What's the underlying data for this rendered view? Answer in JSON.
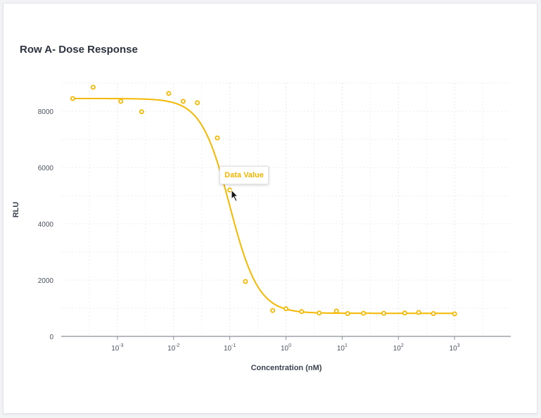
{
  "chart_data": {
    "type": "scatter",
    "title": "Row A- Dose Response",
    "xlabel": "Concentration (nM)",
    "ylabel": "RLU",
    "xscale": "log",
    "xlim": [
      0.0001,
      10000
    ],
    "ylim": [
      0,
      9000
    ],
    "yticks": [
      0,
      2000,
      4000,
      6000,
      8000
    ],
    "xticks": [
      {
        "base": "10",
        "exp": "-3",
        "value": 0.001
      },
      {
        "base": "10",
        "exp": "-2",
        "value": 0.01
      },
      {
        "base": "10",
        "exp": "-1",
        "value": 0.1
      },
      {
        "base": "10",
        "exp": "0",
        "value": 1
      },
      {
        "base": "10",
        "exp": "1",
        "value": 10
      },
      {
        "base": "10",
        "exp": "2",
        "value": 100
      },
      {
        "base": "10",
        "exp": "3",
        "value": 1000
      }
    ],
    "points": [
      {
        "x": 0.00016,
        "y": 8450
      },
      {
        "x": 0.00037,
        "y": 8850
      },
      {
        "x": 0.00115,
        "y": 8350
      },
      {
        "x": 0.0027,
        "y": 7980
      },
      {
        "x": 0.0082,
        "y": 8630
      },
      {
        "x": 0.0148,
        "y": 8350
      },
      {
        "x": 0.0265,
        "y": 8300
      },
      {
        "x": 0.06,
        "y": 7050
      },
      {
        "x": 0.1,
        "y": 5200
      },
      {
        "x": 0.19,
        "y": 1950
      },
      {
        "x": 0.58,
        "y": 920
      },
      {
        "x": 1.0,
        "y": 980
      },
      {
        "x": 1.9,
        "y": 880
      },
      {
        "x": 3.9,
        "y": 830
      },
      {
        "x": 7.9,
        "y": 900
      },
      {
        "x": 12.5,
        "y": 810
      },
      {
        "x": 24,
        "y": 820
      },
      {
        "x": 55,
        "y": 820
      },
      {
        "x": 130,
        "y": 830
      },
      {
        "x": 230,
        "y": 850
      },
      {
        "x": 420,
        "y": 810
      },
      {
        "x": 1000,
        "y": 800
      }
    ],
    "fit": {
      "top": 8450,
      "bottom": 820,
      "log_ic50": -1.0,
      "hill": 1.7
    },
    "grid": true,
    "series_color": "#f5b800",
    "tooltip_text": "Data Value"
  }
}
